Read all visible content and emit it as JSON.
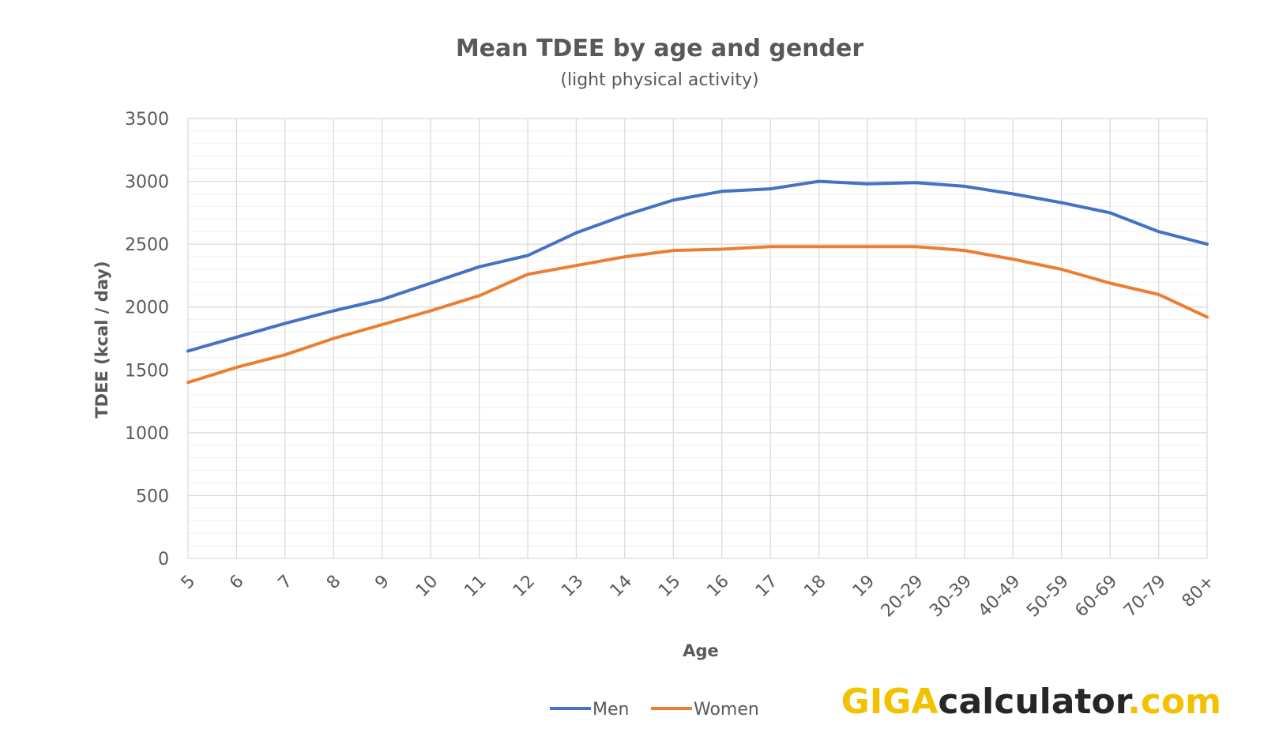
{
  "chart_data": {
    "type": "line",
    "title": "Mean TDEE by age and gender",
    "subtitle": "(light physical activity)",
    "xlabel": "Age",
    "ylabel": "TDEE (kcal / day)",
    "ylim": [
      0,
      3500
    ],
    "yticks": [
      0,
      500,
      1000,
      1500,
      2000,
      2500,
      3000,
      3500
    ],
    "ytick_labels": [
      "0",
      "500",
      "1000",
      "1500",
      "2000",
      "2500",
      "3000",
      "3500"
    ],
    "grid": true,
    "legend_position": "bottom",
    "categories": [
      "5",
      "6",
      "7",
      "8",
      "9",
      "10",
      "11",
      "12",
      "13",
      "14",
      "15",
      "16",
      "17",
      "18",
      "19",
      "20-29",
      "30-39",
      "40-49",
      "50-59",
      "60-69",
      "70-79",
      "80+"
    ],
    "series": [
      {
        "name": "Men",
        "color": "#4472C4",
        "values": [
          1650,
          1760,
          1870,
          1970,
          2060,
          2190,
          2320,
          2410,
          2590,
          2730,
          2850,
          2920,
          2940,
          3000,
          2980,
          2990,
          2960,
          2900,
          2830,
          2750,
          2600,
          2500
        ]
      },
      {
        "name": "Women",
        "color": "#ED7D31",
        "values": [
          1400,
          1520,
          1620,
          1750,
          1860,
          1970,
          2090,
          2260,
          2330,
          2400,
          2450,
          2460,
          2480,
          2480,
          2480,
          2480,
          2450,
          2380,
          2300,
          2190,
          2100,
          1920
        ]
      }
    ]
  },
  "colors": {
    "gridline": "#d9d9d9",
    "minor_gridline": "#f0f0f0",
    "text": "#595959"
  },
  "logo": {
    "part1": "GIGA",
    "part2": "calculator",
    "part3": ".com",
    "color1": "#F2C200",
    "color2": "#262626",
    "color3": "#F2C200"
  }
}
